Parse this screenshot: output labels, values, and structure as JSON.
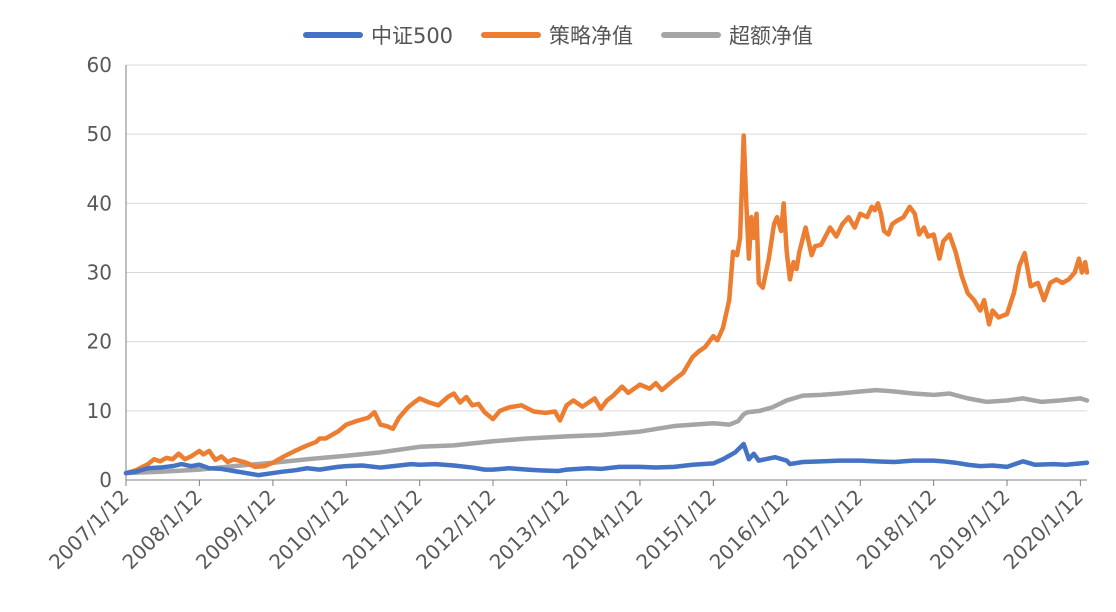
{
  "chart_data": {
    "type": "line",
    "title": "",
    "xlabel": "",
    "ylabel": "",
    "ylim": [
      0,
      60
    ],
    "yticks": [
      "0",
      "10",
      "20",
      "30",
      "40",
      "50",
      "60"
    ],
    "grid": true,
    "legend_position": "top-center",
    "x_tick_labels": [
      "2007/1/12",
      "2008/1/12",
      "2009/1/12",
      "2010/1/12",
      "2011/1/12",
      "2012/1/12",
      "2013/1/12",
      "2014/1/12",
      "2015/1/12",
      "2016/1/12",
      "2017/1/12",
      "2018/1/12",
      "2019/1/12",
      "2020/1/12"
    ],
    "x_start": "2007/1/12",
    "x_end": "2020/2/14",
    "series": [
      {
        "name": "中证500",
        "color": "#4472C4",
        "points": [
          [
            "2007/1/12",
            1.0
          ],
          [
            "2007/3/1",
            1.2
          ],
          [
            "2007/5/1",
            1.7
          ],
          [
            "2007/7/1",
            1.8
          ],
          [
            "2007/9/1",
            2.0
          ],
          [
            "2007/10/15",
            2.3
          ],
          [
            "2007/12/1",
            2.0
          ],
          [
            "2008/1/12",
            2.2
          ],
          [
            "2008/3/1",
            1.7
          ],
          [
            "2008/5/1",
            1.6
          ],
          [
            "2008/7/1",
            1.3
          ],
          [
            "2008/9/1",
            1.0
          ],
          [
            "2008/11/1",
            0.7
          ],
          [
            "2009/1/12",
            1.0
          ],
          [
            "2009/3/1",
            1.2
          ],
          [
            "2009/5/1",
            1.4
          ],
          [
            "2009/7/1",
            1.7
          ],
          [
            "2009/9/1",
            1.5
          ],
          [
            "2009/12/1",
            1.9
          ],
          [
            "2010/1/12",
            2.0
          ],
          [
            "2010/4/1",
            2.1
          ],
          [
            "2010/7/1",
            1.8
          ],
          [
            "2010/10/1",
            2.1
          ],
          [
            "2010/12/1",
            2.3
          ],
          [
            "2011/1/12",
            2.2
          ],
          [
            "2011/4/1",
            2.3
          ],
          [
            "2011/7/1",
            2.1
          ],
          [
            "2011/10/1",
            1.8
          ],
          [
            "2011/12/1",
            1.5
          ],
          [
            "2012/1/12",
            1.5
          ],
          [
            "2012/4/1",
            1.7
          ],
          [
            "2012/7/1",
            1.5
          ],
          [
            "2012/9/1",
            1.4
          ],
          [
            "2012/12/1",
            1.3
          ],
          [
            "2013/1/12",
            1.5
          ],
          [
            "2013/5/1",
            1.7
          ],
          [
            "2013/7/1",
            1.6
          ],
          [
            "2013/10/1",
            1.9
          ],
          [
            "2014/1/12",
            1.9
          ],
          [
            "2014/4/1",
            1.8
          ],
          [
            "2014/7/1",
            1.9
          ],
          [
            "2014/10/1",
            2.2
          ],
          [
            "2015/1/12",
            2.4
          ],
          [
            "2015/3/1",
            3.0
          ],
          [
            "2015/5/1",
            4.0
          ],
          [
            "2015/6/12",
            5.2
          ],
          [
            "2015/7/8",
            3.0
          ],
          [
            "2015/8/1",
            3.8
          ],
          [
            "2015/8/26",
            2.8
          ],
          [
            "2015/11/15",
            3.3
          ],
          [
            "2016/1/12",
            2.8
          ],
          [
            "2016/1/28",
            2.3
          ],
          [
            "2016/4/1",
            2.6
          ],
          [
            "2016/7/1",
            2.7
          ],
          [
            "2016/10/1",
            2.8
          ],
          [
            "2017/1/12",
            2.8
          ],
          [
            "2017/4/1",
            2.7
          ],
          [
            "2017/7/1",
            2.6
          ],
          [
            "2017/10/1",
            2.8
          ],
          [
            "2018/1/12",
            2.8
          ],
          [
            "2018/3/1",
            2.7
          ],
          [
            "2018/5/1",
            2.5
          ],
          [
            "2018/7/1",
            2.2
          ],
          [
            "2018/9/1",
            2.0
          ],
          [
            "2018/11/1",
            2.1
          ],
          [
            "2019/1/12",
            1.9
          ],
          [
            "2019/4/1",
            2.7
          ],
          [
            "2019/6/1",
            2.2
          ],
          [
            "2019/9/1",
            2.3
          ],
          [
            "2019/11/1",
            2.2
          ],
          [
            "2020/1/12",
            2.4
          ],
          [
            "2020/2/14",
            2.5
          ]
        ]
      },
      {
        "name": "策略净值",
        "color": "#ED7D31",
        "points": [
          [
            "2007/1/12",
            1.0
          ],
          [
            "2007/3/1",
            1.4
          ],
          [
            "2007/5/1",
            2.3
          ],
          [
            "2007/6/1",
            3.0
          ],
          [
            "2007/7/1",
            2.7
          ],
          [
            "2007/8/1",
            3.2
          ],
          [
            "2007/9/1",
            3.0
          ],
          [
            "2007/10/1",
            3.8
          ],
          [
            "2007/11/1",
            3.0
          ],
          [
            "2007/12/1",
            3.4
          ],
          [
            "2008/1/12",
            4.2
          ],
          [
            "2008/2/1",
            3.7
          ],
          [
            "2008/3/1",
            4.2
          ],
          [
            "2008/4/1",
            2.9
          ],
          [
            "2008/5/1",
            3.4
          ],
          [
            "2008/6/1",
            2.6
          ],
          [
            "2008/7/1",
            3.0
          ],
          [
            "2008/9/1",
            2.5
          ],
          [
            "2008/10/15",
            1.9
          ],
          [
            "2008/12/1",
            2.0
          ],
          [
            "2009/1/12",
            2.5
          ],
          [
            "2009/3/1",
            3.3
          ],
          [
            "2009/5/1",
            4.2
          ],
          [
            "2009/7/1",
            5.0
          ],
          [
            "2009/8/15",
            5.5
          ],
          [
            "2009/9/1",
            6.0
          ],
          [
            "2009/10/1",
            6.0
          ],
          [
            "2009/12/1",
            7.0
          ],
          [
            "2010/1/12",
            8.0
          ],
          [
            "2010/3/1",
            8.5
          ],
          [
            "2010/5/1",
            9.0
          ],
          [
            "2010/6/1",
            9.8
          ],
          [
            "2010/7/1",
            8.0
          ],
          [
            "2010/8/1",
            7.8
          ],
          [
            "2010/9/1",
            7.4
          ],
          [
            "2010/10/1",
            9.0
          ],
          [
            "2010/11/15",
            10.5
          ],
          [
            "2010/12/15",
            11.2
          ],
          [
            "2011/1/12",
            11.8
          ],
          [
            "2011/3/1",
            11.2
          ],
          [
            "2011/4/15",
            10.8
          ],
          [
            "2011/6/1",
            12.0
          ],
          [
            "2011/7/1",
            12.5
          ],
          [
            "2011/8/1",
            11.2
          ],
          [
            "2011/9/1",
            12.0
          ],
          [
            "2011/10/1",
            10.8
          ],
          [
            "2011/11/1",
            11.0
          ],
          [
            "2011/12/1",
            9.8
          ],
          [
            "2012/1/12",
            8.8
          ],
          [
            "2012/2/15",
            10.0
          ],
          [
            "2012/4/1",
            10.5
          ],
          [
            "2012/6/1",
            10.8
          ],
          [
            "2012/8/1",
            9.9
          ],
          [
            "2012/10/1",
            9.7
          ],
          [
            "2012/11/15",
            9.9
          ],
          [
            "2012/12/10",
            8.6
          ],
          [
            "2013/1/12",
            10.8
          ],
          [
            "2013/2/15",
            11.5
          ],
          [
            "2013/4/1",
            10.6
          ],
          [
            "2013/6/1",
            11.8
          ],
          [
            "2013/7/1",
            10.3
          ],
          [
            "2013/8/1",
            11.5
          ],
          [
            "2013/9/1",
            12.2
          ],
          [
            "2013/10/15",
            13.5
          ],
          [
            "2013/11/15",
            12.6
          ],
          [
            "2014/1/12",
            13.8
          ],
          [
            "2014/3/1",
            13.2
          ],
          [
            "2014/4/1",
            14.0
          ],
          [
            "2014/5/1",
            13.0
          ],
          [
            "2014/7/1",
            14.5
          ],
          [
            "2014/8/15",
            15.5
          ],
          [
            "2014/10/1",
            17.8
          ],
          [
            "2014/11/1",
            18.6
          ],
          [
            "2014/12/1",
            19.2
          ],
          [
            "2015/1/12",
            20.8
          ],
          [
            "2015/2/1",
            20.2
          ],
          [
            "2015/3/1",
            22.0
          ],
          [
            "2015/4/1",
            26.0
          ],
          [
            "2015/4/20",
            33.0
          ],
          [
            "2015/5/10",
            32.5
          ],
          [
            "2015/5/25",
            35.0
          ],
          [
            "2015/6/12",
            49.8
          ],
          [
            "2015/6/25",
            40.0
          ],
          [
            "2015/7/8",
            32.0
          ],
          [
            "2015/7/20",
            38.0
          ],
          [
            "2015/8/1",
            35.0
          ],
          [
            "2015/8/15",
            38.5
          ],
          [
            "2015/8/26",
            28.5
          ],
          [
            "2015/9/15",
            27.8
          ],
          [
            "2015/10/15",
            32.0
          ],
          [
            "2015/11/10",
            37.0
          ],
          [
            "2015/11/25",
            38.0
          ],
          [
            "2015/12/15",
            36.0
          ],
          [
            "2015/12/28",
            40.0
          ],
          [
            "2016/1/12",
            33.0
          ],
          [
            "2016/1/28",
            29.0
          ],
          [
            "2016/2/15",
            31.5
          ],
          [
            "2016/3/1",
            30.5
          ],
          [
            "2016/3/15",
            33.0
          ],
          [
            "2016/4/15",
            36.5
          ],
          [
            "2016/5/15",
            32.5
          ],
          [
            "2016/6/1",
            33.8
          ],
          [
            "2016/7/1",
            34.0
          ],
          [
            "2016/8/15",
            36.5
          ],
          [
            "2016/9/15",
            35.2
          ],
          [
            "2016/10/15",
            37.0
          ],
          [
            "2016/11/15",
            38.0
          ],
          [
            "2016/12/15",
            36.5
          ],
          [
            "2017/1/12",
            38.5
          ],
          [
            "2017/2/15",
            38.0
          ],
          [
            "2017/3/10",
            39.5
          ],
          [
            "2017/3/25",
            39.0
          ],
          [
            "2017/4/10",
            40.0
          ],
          [
            "2017/4/25",
            38.5
          ],
          [
            "2017/5/10",
            36.0
          ],
          [
            "2017/6/1",
            35.5
          ],
          [
            "2017/6/20",
            37.0
          ],
          [
            "2017/7/15",
            37.5
          ],
          [
            "2017/8/15",
            38.0
          ],
          [
            "2017/9/15",
            39.5
          ],
          [
            "2017/10/10",
            38.5
          ],
          [
            "2017/11/1",
            35.5
          ],
          [
            "2017/11/25",
            36.5
          ],
          [
            "2017/12/15",
            35.2
          ],
          [
            "2018/1/12",
            35.5
          ],
          [
            "2018/2/10",
            32.0
          ],
          [
            "2018/3/1",
            34.5
          ],
          [
            "2018/4/1",
            35.5
          ],
          [
            "2018/5/1",
            33.0
          ],
          [
            "2018/6/1",
            29.5
          ],
          [
            "2018/7/1",
            27.0
          ],
          [
            "2018/8/1",
            26.0
          ],
          [
            "2018/9/1",
            24.5
          ],
          [
            "2018/9/20",
            26.0
          ],
          [
            "2018/10/15",
            22.5
          ],
          [
            "2018/11/1",
            24.5
          ],
          [
            "2018/12/1",
            23.5
          ],
          [
            "2019/1/12",
            24.0
          ],
          [
            "2019/2/15",
            27.0
          ],
          [
            "2019/3/15",
            31.0
          ],
          [
            "2019/4/10",
            32.8
          ],
          [
            "2019/5/10",
            28.0
          ],
          [
            "2019/6/15",
            28.5
          ],
          [
            "2019/7/15",
            26.0
          ],
          [
            "2019/8/15",
            28.5
          ],
          [
            "2019/9/15",
            29.0
          ],
          [
            "2019/10/15",
            28.5
          ],
          [
            "2019/11/15",
            29.0
          ],
          [
            "2019/12/15",
            30.0
          ],
          [
            "2020/1/5",
            32.0
          ],
          [
            "2020/1/20",
            30.0
          ],
          [
            "2020/2/5",
            31.5
          ],
          [
            "2020/2/14",
            30.0
          ]
        ]
      },
      {
        "name": "超额净值",
        "color": "#A5A5A5",
        "points": [
          [
            "2007/1/12",
            1.0
          ],
          [
            "2007/7/1",
            1.2
          ],
          [
            "2008/1/12",
            1.5
          ],
          [
            "2008/7/1",
            2.0
          ],
          [
            "2009/1/12",
            2.5
          ],
          [
            "2009/7/1",
            3.0
          ],
          [
            "2010/1/12",
            3.5
          ],
          [
            "2010/7/1",
            4.0
          ],
          [
            "2011/1/12",
            4.8
          ],
          [
            "2011/7/1",
            5.0
          ],
          [
            "2012/1/12",
            5.6
          ],
          [
            "2012/7/1",
            6.0
          ],
          [
            "2013/1/12",
            6.3
          ],
          [
            "2013/7/1",
            6.5
          ],
          [
            "2014/1/12",
            7.0
          ],
          [
            "2014/7/1",
            7.8
          ],
          [
            "2015/1/12",
            8.2
          ],
          [
            "2015/4/1",
            8.0
          ],
          [
            "2015/5/15",
            8.5
          ],
          [
            "2015/6/12",
            9.5
          ],
          [
            "2015/7/1",
            9.8
          ],
          [
            "2015/9/1",
            10.0
          ],
          [
            "2015/11/1",
            10.5
          ],
          [
            "2016/1/12",
            11.5
          ],
          [
            "2016/4/1",
            12.2
          ],
          [
            "2016/7/1",
            12.3
          ],
          [
            "2016/10/1",
            12.5
          ],
          [
            "2017/1/12",
            12.8
          ],
          [
            "2017/4/1",
            13.0
          ],
          [
            "2017/7/1",
            12.8
          ],
          [
            "2017/10/1",
            12.5
          ],
          [
            "2018/1/12",
            12.3
          ],
          [
            "2018/4/1",
            12.5
          ],
          [
            "2018/7/1",
            11.8
          ],
          [
            "2018/10/1",
            11.3
          ],
          [
            "2019/1/12",
            11.5
          ],
          [
            "2019/4/1",
            11.8
          ],
          [
            "2019/7/1",
            11.3
          ],
          [
            "2019/10/1",
            11.5
          ],
          [
            "2020/1/12",
            11.8
          ],
          [
            "2020/2/14",
            11.5
          ]
        ]
      }
    ]
  }
}
